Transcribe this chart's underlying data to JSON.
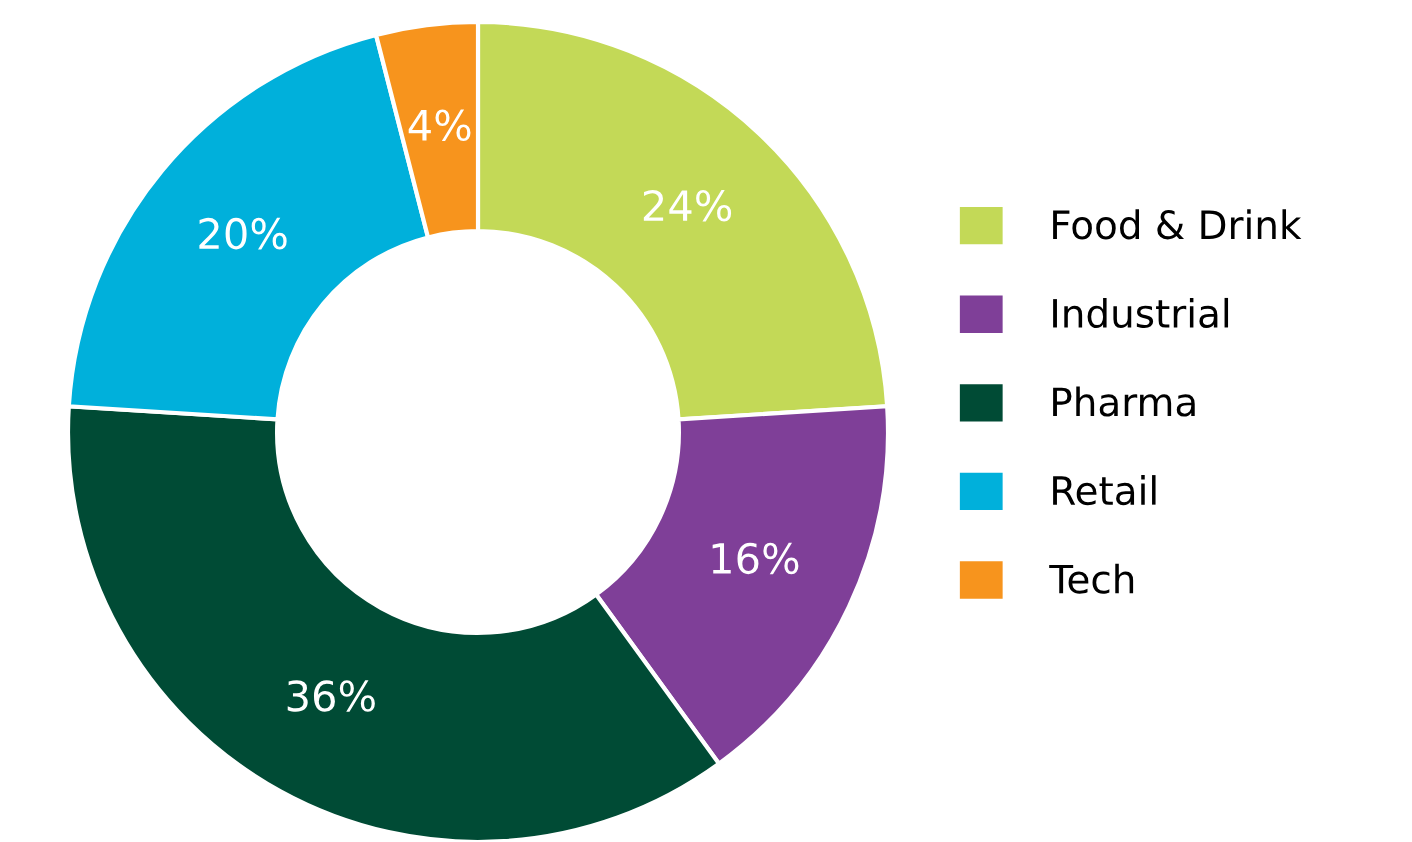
{
  "chart_data": {
    "type": "donut",
    "categories": [
      "Food & Drink",
      "Industrial",
      "Pharma",
      "Retail",
      "Tech"
    ],
    "values": [
      24,
      16,
      36,
      20,
      4
    ],
    "colors": [
      "#c3d957",
      "#7f3f98",
      "#004b35",
      "#00b0db",
      "#f7941d"
    ],
    "value_labels": [
      "24%",
      "16%",
      "36%",
      "20%",
      "4%"
    ],
    "legend": "right"
  }
}
